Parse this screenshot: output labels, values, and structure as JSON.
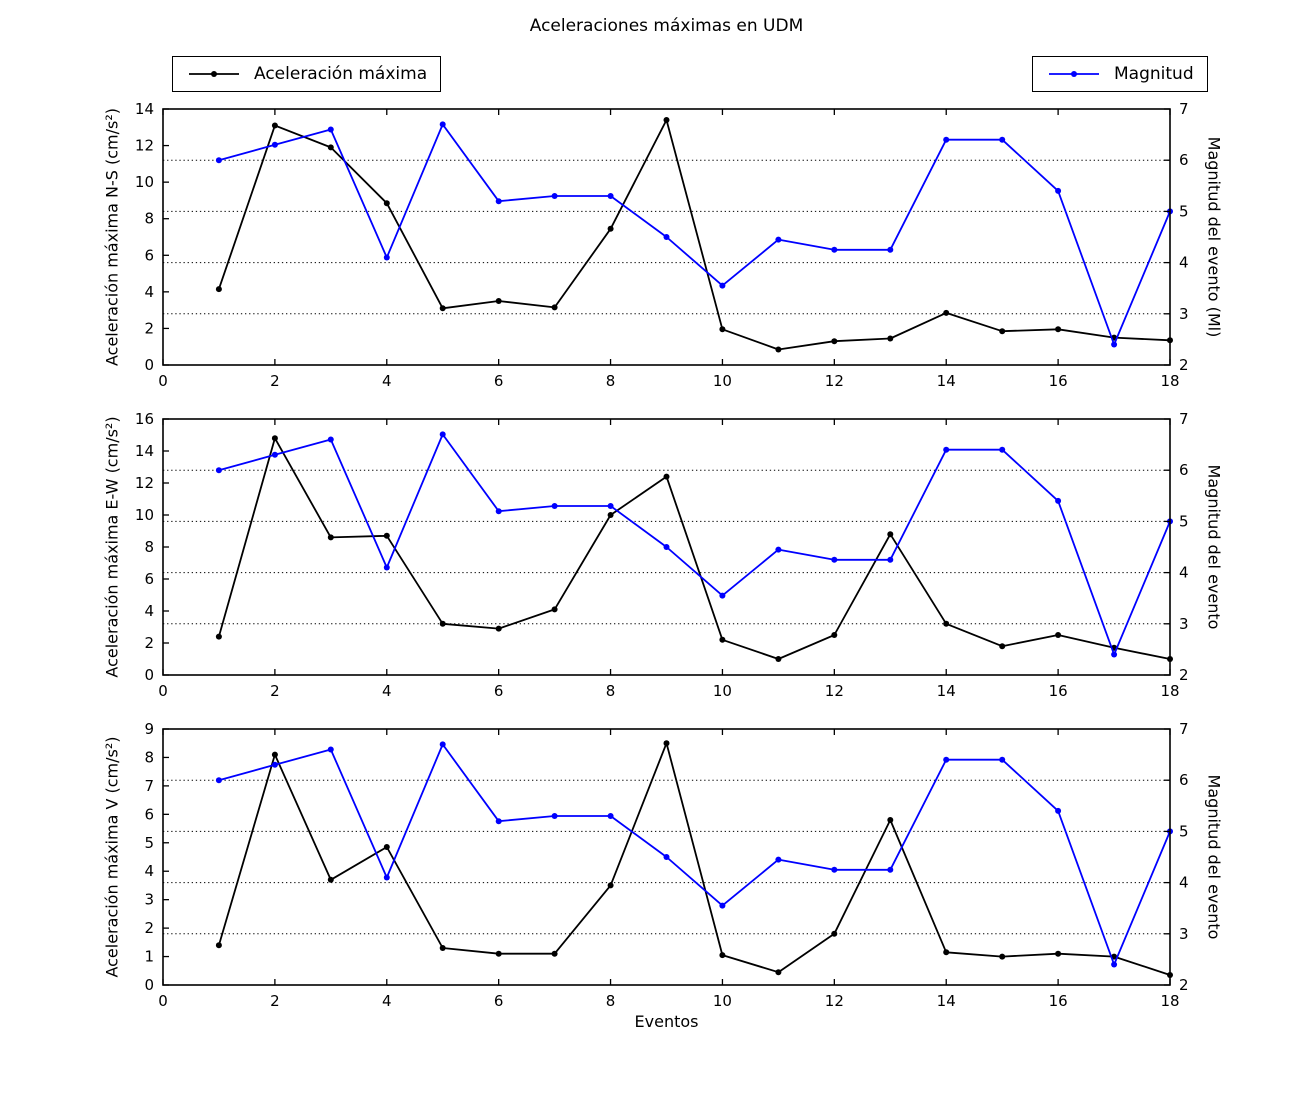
{
  "title": "Aceleraciones máximas en UDM",
  "xlabel": "Eventos",
  "legend": {
    "accel": "Aceleración máxima",
    "magnitud": "Magnitud"
  },
  "colors": {
    "accel": "#000000",
    "magnitud": "#0000ff",
    "grid": "#000000",
    "axis": "#000000",
    "background": "#ffffff"
  },
  "chart_data": [
    {
      "type": "line",
      "title": "",
      "x": [
        1,
        2,
        3,
        4,
        5,
        6,
        7,
        8,
        9,
        10,
        11,
        12,
        13,
        14,
        15,
        16,
        17,
        18
      ],
      "xlim": [
        0,
        18
      ],
      "xticks": [
        0,
        2,
        4,
        6,
        8,
        10,
        12,
        14,
        16,
        18
      ],
      "ylabel_left": "Aceleración máxima N-S (cm/s²)",
      "ylim_left": [
        0,
        14
      ],
      "yticks_left": [
        0,
        2,
        4,
        6,
        8,
        10,
        12,
        14
      ],
      "ylabel_right": "Magnitud del evento (Ml)",
      "ylim_right": [
        2,
        7
      ],
      "yticks_right": [
        2,
        3,
        4,
        5,
        6,
        7
      ],
      "grid_right_values": [
        3,
        4,
        5,
        6
      ],
      "grid_style": "dotted-horizontal",
      "legend_position": "outside-top",
      "series": [
        {
          "name": "Aceleración máxima",
          "axis": "left",
          "color": "#000000",
          "values": [
            4.15,
            13.1,
            11.9,
            8.85,
            3.1,
            3.5,
            3.15,
            7.45,
            13.4,
            1.95,
            0.85,
            1.3,
            1.45,
            2.85,
            1.85,
            1.95,
            1.5,
            1.35
          ]
        },
        {
          "name": "Magnitud",
          "axis": "right",
          "color": "#0000ff",
          "values": [
            6.0,
            6.3,
            6.6,
            4.1,
            6.7,
            5.2,
            5.3,
            5.3,
            4.5,
            3.55,
            4.45,
            4.25,
            4.25,
            6.4,
            6.4,
            5.4,
            2.4,
            5.0
          ]
        }
      ]
    },
    {
      "type": "line",
      "title": "",
      "x": [
        1,
        2,
        3,
        4,
        5,
        6,
        7,
        8,
        9,
        10,
        11,
        12,
        13,
        14,
        15,
        16,
        17,
        18
      ],
      "xlim": [
        0,
        18
      ],
      "xticks": [
        0,
        2,
        4,
        6,
        8,
        10,
        12,
        14,
        16,
        18
      ],
      "ylabel_left": "Aceleración máxima E-W (cm/s²)",
      "ylim_left": [
        0,
        16
      ],
      "yticks_left": [
        0,
        2,
        4,
        6,
        8,
        10,
        12,
        14,
        16
      ],
      "ylabel_right": "Magnitud del evento",
      "ylim_right": [
        2,
        7
      ],
      "yticks_right": [
        2,
        3,
        4,
        5,
        6,
        7
      ],
      "grid_right_values": [
        3,
        4,
        5,
        6
      ],
      "grid_style": "dotted-horizontal",
      "legend_position": "none",
      "series": [
        {
          "name": "Aceleración máxima",
          "axis": "left",
          "color": "#000000",
          "values": [
            2.4,
            14.8,
            8.6,
            8.7,
            3.2,
            2.9,
            4.1,
            10.0,
            12.4,
            2.2,
            1.0,
            2.5,
            8.8,
            3.2,
            1.8,
            2.5,
            1.7,
            1.0
          ]
        },
        {
          "name": "Magnitud",
          "axis": "right",
          "color": "#0000ff",
          "values": [
            6.0,
            6.3,
            6.6,
            4.1,
            6.7,
            5.2,
            5.3,
            5.3,
            4.5,
            3.55,
            4.45,
            4.25,
            4.25,
            6.4,
            6.4,
            5.4,
            2.4,
            5.0
          ]
        }
      ]
    },
    {
      "type": "line",
      "title": "",
      "x": [
        1,
        2,
        3,
        4,
        5,
        6,
        7,
        8,
        9,
        10,
        11,
        12,
        13,
        14,
        15,
        16,
        17,
        18
      ],
      "xlim": [
        0,
        18
      ],
      "xticks": [
        0,
        2,
        4,
        6,
        8,
        10,
        12,
        14,
        16,
        18
      ],
      "ylabel_left": "Aceleración máxima V (cm/s²)",
      "ylim_left": [
        0,
        9
      ],
      "yticks_left": [
        0,
        1,
        2,
        3,
        4,
        5,
        6,
        7,
        8,
        9
      ],
      "ylabel_right": "Magnitud del evento",
      "ylim_right": [
        2,
        7
      ],
      "yticks_right": [
        2,
        3,
        4,
        5,
        6,
        7
      ],
      "grid_right_values": [
        3,
        4,
        5,
        6
      ],
      "grid_style": "dotted-horizontal",
      "legend_position": "none",
      "xlabel": "Eventos",
      "series": [
        {
          "name": "Aceleración máxima",
          "axis": "left",
          "color": "#000000",
          "values": [
            1.4,
            8.1,
            3.7,
            4.85,
            1.3,
            1.1,
            1.1,
            3.5,
            8.5,
            1.05,
            0.45,
            1.8,
            5.8,
            1.15,
            1.0,
            1.1,
            1.0,
            0.35
          ]
        },
        {
          "name": "Magnitud",
          "axis": "right",
          "color": "#0000ff",
          "values": [
            6.0,
            6.3,
            6.6,
            4.1,
            6.7,
            5.2,
            5.3,
            5.3,
            4.5,
            3.55,
            4.45,
            4.25,
            4.25,
            6.4,
            6.4,
            5.4,
            2.4,
            5.0
          ]
        }
      ]
    }
  ]
}
